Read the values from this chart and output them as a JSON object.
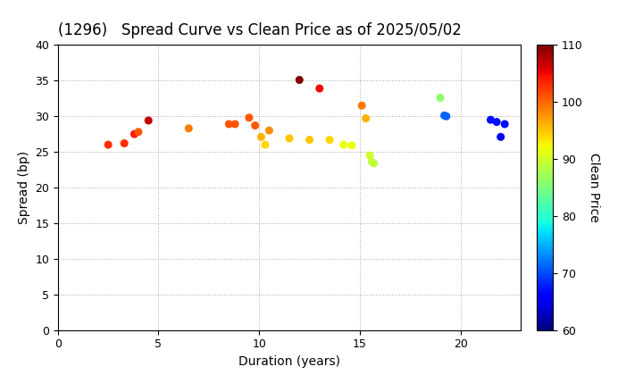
{
  "title": "(1296)   Spread Curve vs Clean Price as of 2025/05/02",
  "xlabel": "Duration (years)",
  "ylabel": "Spread (bp)",
  "colorbar_label": "Clean Price",
  "xlim": [
    0,
    23
  ],
  "ylim": [
    0,
    40
  ],
  "xticks": [
    0,
    5,
    10,
    15,
    20
  ],
  "yticks": [
    0,
    5,
    10,
    15,
    20,
    25,
    30,
    35,
    40
  ],
  "cmap": "jet",
  "vmin": 60,
  "vmax": 110,
  "colorbar_ticks": [
    60,
    70,
    80,
    90,
    100,
    110
  ],
  "points": [
    {
      "duration": 2.5,
      "spread": 26.0,
      "price": 103
    },
    {
      "duration": 3.3,
      "spread": 26.2,
      "price": 103
    },
    {
      "duration": 3.8,
      "spread": 27.5,
      "price": 104
    },
    {
      "duration": 4.0,
      "spread": 27.8,
      "price": 101
    },
    {
      "duration": 4.5,
      "spread": 29.4,
      "price": 107
    },
    {
      "duration": 6.5,
      "spread": 28.3,
      "price": 99
    },
    {
      "duration": 8.5,
      "spread": 28.9,
      "price": 101
    },
    {
      "duration": 8.8,
      "spread": 28.9,
      "price": 101
    },
    {
      "duration": 9.5,
      "spread": 29.8,
      "price": 101
    },
    {
      "duration": 9.8,
      "spread": 28.7,
      "price": 101
    },
    {
      "duration": 10.1,
      "spread": 27.1,
      "price": 96
    },
    {
      "duration": 10.3,
      "spread": 26.0,
      "price": 94
    },
    {
      "duration": 10.5,
      "spread": 28.0,
      "price": 98
    },
    {
      "duration": 11.5,
      "spread": 26.9,
      "price": 95
    },
    {
      "duration": 12.0,
      "spread": 35.1,
      "price": 110
    },
    {
      "duration": 12.5,
      "spread": 26.7,
      "price": 95
    },
    {
      "duration": 13.0,
      "spread": 33.9,
      "price": 105
    },
    {
      "duration": 13.5,
      "spread": 26.7,
      "price": 94
    },
    {
      "duration": 14.2,
      "spread": 26.0,
      "price": 92
    },
    {
      "duration": 14.6,
      "spread": 25.9,
      "price": 92
    },
    {
      "duration": 15.1,
      "spread": 31.5,
      "price": 99
    },
    {
      "duration": 15.3,
      "spread": 29.7,
      "price": 96
    },
    {
      "duration": 15.5,
      "spread": 24.5,
      "price": 90
    },
    {
      "duration": 15.6,
      "spread": 23.6,
      "price": 89
    },
    {
      "duration": 15.7,
      "spread": 23.4,
      "price": 89
    },
    {
      "duration": 19.0,
      "spread": 32.6,
      "price": 86
    },
    {
      "duration": 19.2,
      "spread": 30.1,
      "price": 71
    },
    {
      "duration": 19.3,
      "spread": 30.0,
      "price": 71
    },
    {
      "duration": 21.5,
      "spread": 29.5,
      "price": 67
    },
    {
      "duration": 21.8,
      "spread": 29.2,
      "price": 67
    },
    {
      "duration": 22.0,
      "spread": 27.1,
      "price": 65
    },
    {
      "duration": 22.2,
      "spread": 28.9,
      "price": 67
    }
  ],
  "marker_size": 30,
  "background_color": "#ffffff",
  "grid_color": "#aaaaaa",
  "title_fontsize": 12,
  "axis_fontsize": 10,
  "tick_fontsize": 9
}
